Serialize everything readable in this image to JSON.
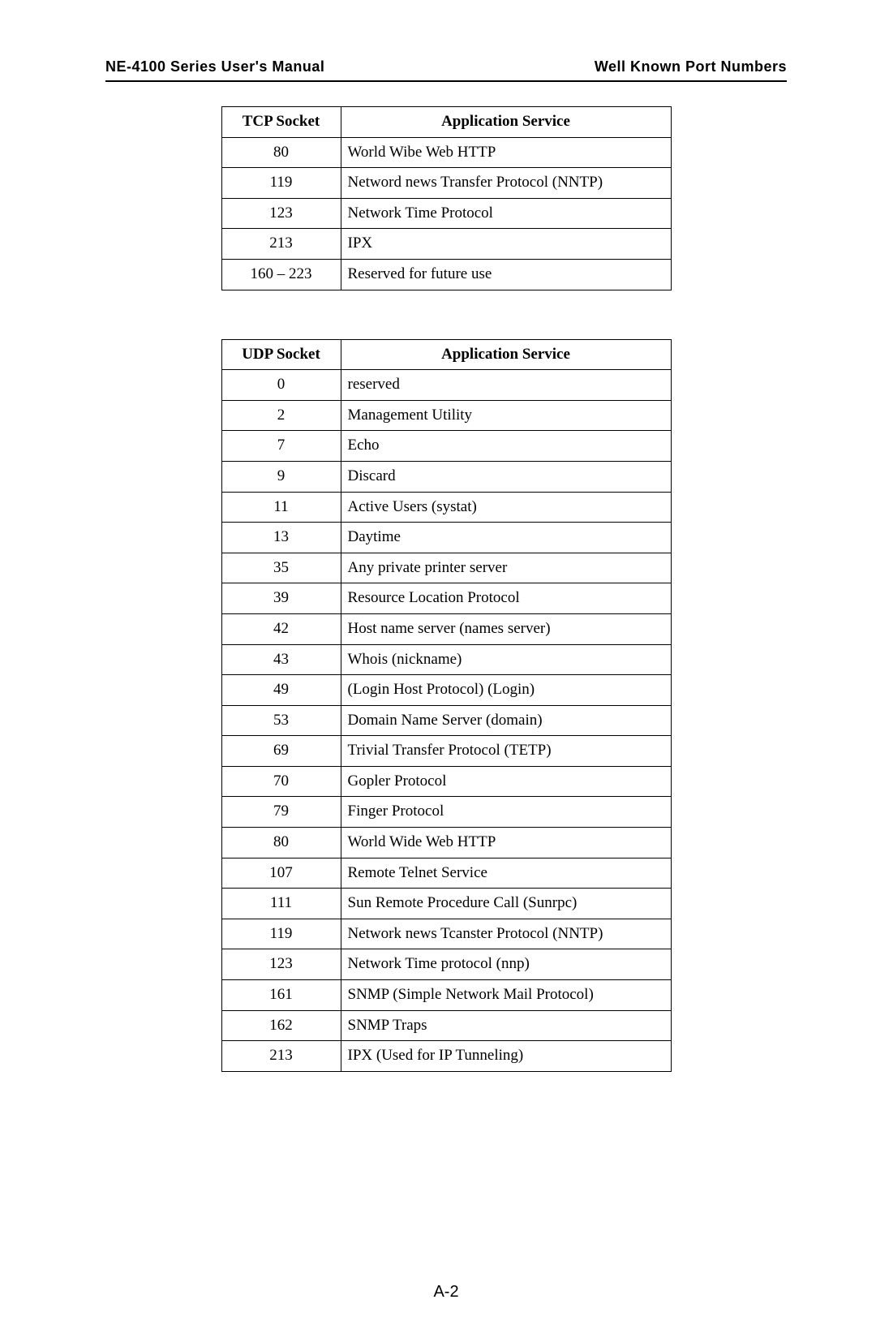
{
  "header": {
    "left": "NE-4100 Series User's Manual",
    "right": "Well Known Port Numbers"
  },
  "tcp_table": {
    "headers": {
      "socket": "TCP Socket",
      "service": "Application Service"
    },
    "rows": [
      {
        "socket": "80",
        "service": "World Wibe Web HTTP"
      },
      {
        "socket": "119",
        "service": "Netword news Transfer Protocol (NNTP)"
      },
      {
        "socket": "123",
        "service": "Network Time Protocol"
      },
      {
        "socket": "213",
        "service": "IPX"
      },
      {
        "socket": "160 – 223",
        "service": "Reserved for future use"
      }
    ]
  },
  "udp_table": {
    "headers": {
      "socket": "UDP Socket",
      "service": "Application Service"
    },
    "rows": [
      {
        "socket": "0",
        "service": "reserved"
      },
      {
        "socket": "2",
        "service": "Management Utility"
      },
      {
        "socket": "7",
        "service": "Echo"
      },
      {
        "socket": "9",
        "service": "Discard"
      },
      {
        "socket": "11",
        "service": "Active Users (systat)"
      },
      {
        "socket": "13",
        "service": "Daytime"
      },
      {
        "socket": "35",
        "service": "Any private printer server"
      },
      {
        "socket": "39",
        "service": "Resource Location Protocol"
      },
      {
        "socket": "42",
        "service": "Host name server (names server)"
      },
      {
        "socket": "43",
        "service": "Whois (nickname)"
      },
      {
        "socket": "49",
        "service": "(Login Host Protocol) (Login)"
      },
      {
        "socket": "53",
        "service": "Domain Name Server (domain)"
      },
      {
        "socket": "69",
        "service": "Trivial Transfer Protocol (TETP)"
      },
      {
        "socket": "70",
        "service": "Gopler Protocol"
      },
      {
        "socket": "79",
        "service": "Finger Protocol"
      },
      {
        "socket": "80",
        "service": "World Wide Web HTTP"
      },
      {
        "socket": "107",
        "service": "Remote Telnet Service"
      },
      {
        "socket": "111",
        "service": "Sun Remote Procedure Call (Sunrpc)"
      },
      {
        "socket": "119",
        "service": "Network news Tcanster Protocol (NNTP)"
      },
      {
        "socket": "123",
        "service": "Network Time protocol (nnp)"
      },
      {
        "socket": "161",
        "service": "SNMP (Simple Network Mail Protocol)"
      },
      {
        "socket": "162",
        "service": "SNMP Traps"
      },
      {
        "socket": "213",
        "service": "IPX (Used for IP Tunneling)"
      }
    ]
  },
  "page_number": "A-2"
}
